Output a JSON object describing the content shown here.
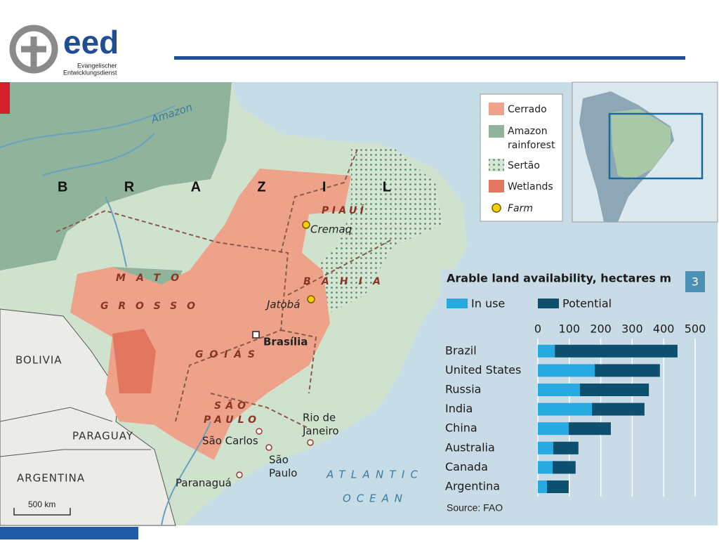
{
  "header": {
    "logo": "eed",
    "org_line1": "Evangelischer",
    "org_line2": "Entwicklungsdienst"
  },
  "map": {
    "legend": [
      "Cerrado",
      "Amazon",
      "rainforest",
      "Sertão",
      "Wetlands",
      "Farm"
    ],
    "labels": [
      "Amazon",
      "BRAZIL",
      "MATO",
      "GROSSO",
      "GOIÁS",
      "PIAUÍ",
      "BAHIA",
      "SÃO",
      "PAULO",
      "Cremaq",
      "Jatobá",
      "Brasília",
      "Rio de",
      "Janeiro",
      "São Carlos",
      "São",
      "Paulo",
      "Paranaguá",
      "BOLIVIA",
      "PARAGUAY",
      "ARGENTINA",
      "ATLANTIC",
      "OCEAN"
    ],
    "scale": "500 km"
  },
  "chart_data": {
    "type": "bar",
    "orientation": "horizontal",
    "stacked": true,
    "title": "Arable land availability, hectares m",
    "badge": "3",
    "source": "Source: FAO",
    "categories": [
      "Brazil",
      "United States",
      "Russia",
      "India",
      "China",
      "Australia",
      "Canada",
      "Argentina"
    ],
    "series": [
      {
        "name": "In use",
        "color": "#27a9e1",
        "values": [
          54,
          181,
          134,
          172,
          98,
          49,
          47,
          29
        ]
      },
      {
        "name": "Potential",
        "color": "#0d4f6e",
        "values": [
          390,
          207,
          219,
          167,
          134,
          80,
          73,
          69
        ]
      }
    ],
    "xlim": [
      0,
      500
    ],
    "xticks": [
      0,
      100,
      200,
      300,
      400,
      500
    ],
    "grid": true
  }
}
